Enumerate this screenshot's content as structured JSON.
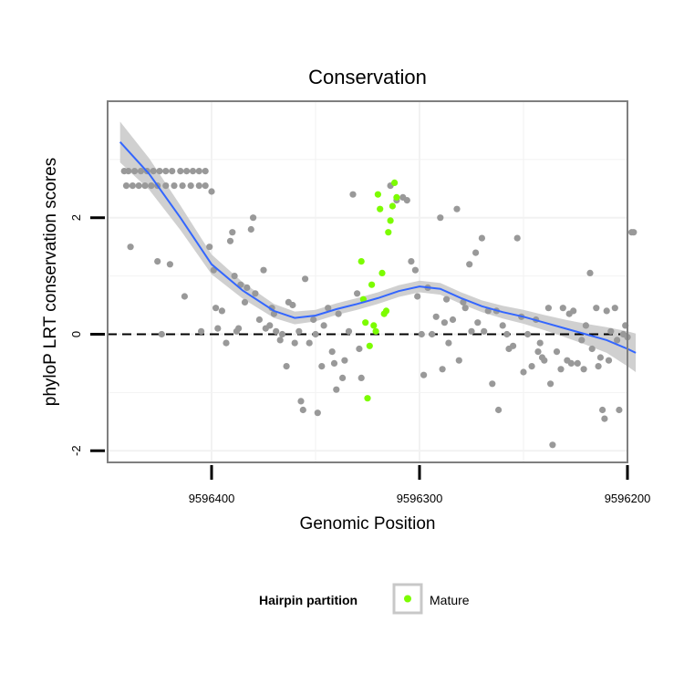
{
  "chart_data": {
    "type": "scatter",
    "title": "Conservation",
    "xlabel": "Genomic Position",
    "ylabel": "phyloP LRT conservation scores",
    "x_reversed": true,
    "xlim": [
      9596200,
      9596450
    ],
    "ylim": [
      -2.2,
      4.0
    ],
    "x_ticks": [
      9596400,
      9596300,
      9596200
    ],
    "x_tick_labels": [
      "9596400",
      "9596300",
      "9596200"
    ],
    "y_ticks": [
      -2,
      0,
      2
    ],
    "y_tick_labels": [
      "-2",
      "0",
      "2"
    ],
    "reference_line": {
      "y": 0,
      "style": "dashed"
    },
    "colors": {
      "other_points": "#999999",
      "mature_points": "#7cfc00",
      "smooth_line": "#3366ff",
      "ribbon": "#c8c8c8",
      "panel_border": "#7f7f7f",
      "grid": "#f2f2f2"
    },
    "legend": {
      "title": "Hairpin partition",
      "position": "bottom",
      "entries": [
        {
          "label": "Mature",
          "color": "#7cfc00"
        }
      ]
    },
    "series": [
      {
        "color": "#999999",
        "points": [
          [
            9596442,
            2.8
          ],
          [
            9596440,
            2.8
          ],
          [
            9596437,
            2.8
          ],
          [
            9596434,
            2.8
          ],
          [
            9596431,
            2.8
          ],
          [
            9596428,
            2.8
          ],
          [
            9596425,
            2.8
          ],
          [
            9596422,
            2.8
          ],
          [
            9596419,
            2.8
          ],
          [
            9596415,
            2.8
          ],
          [
            9596412,
            2.8
          ],
          [
            9596409,
            2.8
          ],
          [
            9596406,
            2.8
          ],
          [
            9596403,
            2.8
          ],
          [
            9596441,
            2.55
          ],
          [
            9596438,
            2.55
          ],
          [
            9596435,
            2.55
          ],
          [
            9596432,
            2.55
          ],
          [
            9596429,
            2.55
          ],
          [
            9596426,
            2.55
          ],
          [
            9596422,
            2.55
          ],
          [
            9596418,
            2.55
          ],
          [
            9596414,
            2.55
          ],
          [
            9596410,
            2.55
          ],
          [
            9596406,
            2.55
          ],
          [
            9596403,
            2.55
          ],
          [
            9596400,
            2.45
          ],
          [
            9596439,
            1.5
          ],
          [
            9596426,
            1.25
          ],
          [
            9596420,
            1.2
          ],
          [
            9596413,
            0.65
          ],
          [
            9596405,
            0.05
          ],
          [
            9596424,
            0.0
          ],
          [
            9596401,
            1.5
          ],
          [
            9596399,
            1.1
          ],
          [
            9596398,
            0.45
          ],
          [
            9596397,
            0.1
          ],
          [
            9596395,
            0.4
          ],
          [
            9596393,
            -0.15
          ],
          [
            9596391,
            1.6
          ],
          [
            9596390,
            1.75
          ],
          [
            9596389,
            1.0
          ],
          [
            9596388,
            0.05
          ],
          [
            9596387,
            0.1
          ],
          [
            9596386,
            0.85
          ],
          [
            9596384,
            0.55
          ],
          [
            9596383,
            0.8
          ],
          [
            9596381,
            1.8
          ],
          [
            9596380,
            2.0
          ],
          [
            9596379,
            0.7
          ],
          [
            9596377,
            0.25
          ],
          [
            9596375,
            1.1
          ],
          [
            9596374,
            0.1
          ],
          [
            9596372,
            0.15
          ],
          [
            9596371,
            0.45
          ],
          [
            9596370,
            0.35
          ],
          [
            9596369,
            0.05
          ],
          [
            9596367,
            -0.1
          ],
          [
            9596366,
            0.0
          ],
          [
            9596364,
            -0.55
          ],
          [
            9596363,
            0.55
          ],
          [
            9596361,
            0.5
          ],
          [
            9596360,
            -0.15
          ],
          [
            9596358,
            0.05
          ],
          [
            9596357,
            -1.15
          ],
          [
            9596356,
            -1.3
          ],
          [
            9596355,
            0.95
          ],
          [
            9596353,
            -0.15
          ],
          [
            9596351,
            0.25
          ],
          [
            9596350,
            0.0
          ],
          [
            9596349,
            -1.35
          ],
          [
            9596347,
            -0.55
          ],
          [
            9596346,
            0.15
          ],
          [
            9596344,
            0.45
          ],
          [
            9596342,
            -0.3
          ],
          [
            9596341,
            -0.5
          ],
          [
            9596340,
            -0.95
          ],
          [
            9596339,
            0.35
          ],
          [
            9596337,
            -0.75
          ],
          [
            9596336,
            -0.45
          ],
          [
            9596334,
            0.05
          ],
          [
            9596332,
            2.4
          ],
          [
            9596330,
            0.7
          ],
          [
            9596329,
            -0.25
          ],
          [
            9596328,
            -0.75
          ],
          [
            9596314,
            2.55
          ],
          [
            9596311,
            2.3
          ],
          [
            9596308,
            2.35
          ],
          [
            9596306,
            2.3
          ],
          [
            9596304,
            1.25
          ],
          [
            9596302,
            1.1
          ],
          [
            9596301,
            0.65
          ],
          [
            9596299,
            0.0
          ],
          [
            9596298,
            -0.7
          ],
          [
            9596296,
            0.8
          ],
          [
            9596294,
            0.0
          ],
          [
            9596292,
            0.3
          ],
          [
            9596290,
            2.0
          ],
          [
            9596289,
            -0.6
          ],
          [
            9596288,
            0.2
          ],
          [
            9596287,
            0.6
          ],
          [
            9596286,
            -0.15
          ],
          [
            9596284,
            0.25
          ],
          [
            9596282,
            2.15
          ],
          [
            9596281,
            -0.45
          ],
          [
            9596279,
            0.55
          ],
          [
            9596278,
            0.45
          ],
          [
            9596276,
            1.2
          ],
          [
            9596275,
            0.05
          ],
          [
            9596273,
            1.4
          ],
          [
            9596272,
            0.2
          ],
          [
            9596270,
            1.65
          ],
          [
            9596269,
            0.05
          ],
          [
            9596267,
            0.4
          ],
          [
            9596265,
            -0.85
          ],
          [
            9596263,
            0.4
          ],
          [
            9596262,
            -1.3
          ],
          [
            9596260,
            0.15
          ],
          [
            9596258,
            0.0
          ],
          [
            9596257,
            -0.25
          ],
          [
            9596255,
            -0.2
          ],
          [
            9596253,
            1.65
          ],
          [
            9596251,
            0.3
          ],
          [
            9596250,
            -0.65
          ],
          [
            9596248,
            0.0
          ],
          [
            9596246,
            -0.55
          ],
          [
            9596244,
            0.25
          ],
          [
            9596243,
            -0.3
          ],
          [
            9596242,
            -0.15
          ],
          [
            9596241,
            -0.4
          ],
          [
            9596240,
            -0.45
          ],
          [
            9596238,
            0.45
          ],
          [
            9596237,
            -0.85
          ],
          [
            9596236,
            -1.9
          ],
          [
            9596234,
            -0.3
          ],
          [
            9596232,
            -0.6
          ],
          [
            9596231,
            0.45
          ],
          [
            9596229,
            -0.45
          ],
          [
            9596228,
            0.35
          ],
          [
            9596227,
            -0.5
          ],
          [
            9596226,
            0.4
          ],
          [
            9596224,
            -0.5
          ],
          [
            9596222,
            -0.1
          ],
          [
            9596221,
            -0.6
          ],
          [
            9596220,
            0.15
          ],
          [
            9596218,
            1.05
          ],
          [
            9596217,
            -0.25
          ],
          [
            9596215,
            0.45
          ],
          [
            9596214,
            -0.55
          ],
          [
            9596213,
            -0.4
          ],
          [
            9596212,
            -1.3
          ],
          [
            9596211,
            -1.45
          ],
          [
            9596210,
            0.4
          ],
          [
            9596209,
            -0.45
          ],
          [
            9596208,
            0.05
          ],
          [
            9596206,
            0.45
          ],
          [
            9596205,
            -0.1
          ],
          [
            9596204,
            -1.3
          ],
          [
            9596202,
            0.0
          ],
          [
            9596201,
            0.15
          ],
          [
            9596200,
            -0.05
          ],
          [
            9596198,
            1.75
          ],
          [
            9596197,
            1.75
          ]
        ]
      },
      {
        "name": "Mature",
        "color": "#7cfc00",
        "points": [
          [
            9596328,
            1.25
          ],
          [
            9596327,
            0.6
          ],
          [
            9596326,
            0.2
          ],
          [
            9596325,
            -1.1
          ],
          [
            9596324,
            -0.2
          ],
          [
            9596323,
            0.85
          ],
          [
            9596322,
            0.15
          ],
          [
            9596321,
            0.05
          ],
          [
            9596320,
            2.4
          ],
          [
            9596319,
            2.15
          ],
          [
            9596318,
            1.05
          ],
          [
            9596317,
            0.35
          ],
          [
            9596316,
            0.4
          ],
          [
            9596315,
            1.75
          ],
          [
            9596314,
            1.95
          ],
          [
            9596313,
            2.2
          ],
          [
            9596312,
            2.6
          ],
          [
            9596311,
            2.35
          ]
        ]
      }
    ],
    "smooth": {
      "x": [
        9596444,
        9596430,
        9596415,
        9596400,
        9596385,
        9596370,
        9596360,
        9596350,
        9596340,
        9596330,
        9596320,
        9596310,
        9596300,
        9596290,
        9596280,
        9596270,
        9596260,
        9596250,
        9596240,
        9596230,
        9596220,
        9596210,
        9596200,
        9596196
      ],
      "y": [
        3.3,
        2.75,
        2.0,
        1.2,
        0.75,
        0.4,
        0.28,
        0.32,
        0.43,
        0.52,
        0.62,
        0.74,
        0.82,
        0.78,
        0.62,
        0.48,
        0.38,
        0.3,
        0.2,
        0.1,
        0.0,
        -0.1,
        -0.25,
        -0.32
      ],
      "se": [
        0.35,
        0.27,
        0.21,
        0.17,
        0.14,
        0.12,
        0.11,
        0.1,
        0.1,
        0.1,
        0.1,
        0.1,
        0.1,
        0.1,
        0.1,
        0.1,
        0.11,
        0.12,
        0.13,
        0.15,
        0.18,
        0.22,
        0.3,
        0.33
      ]
    }
  }
}
